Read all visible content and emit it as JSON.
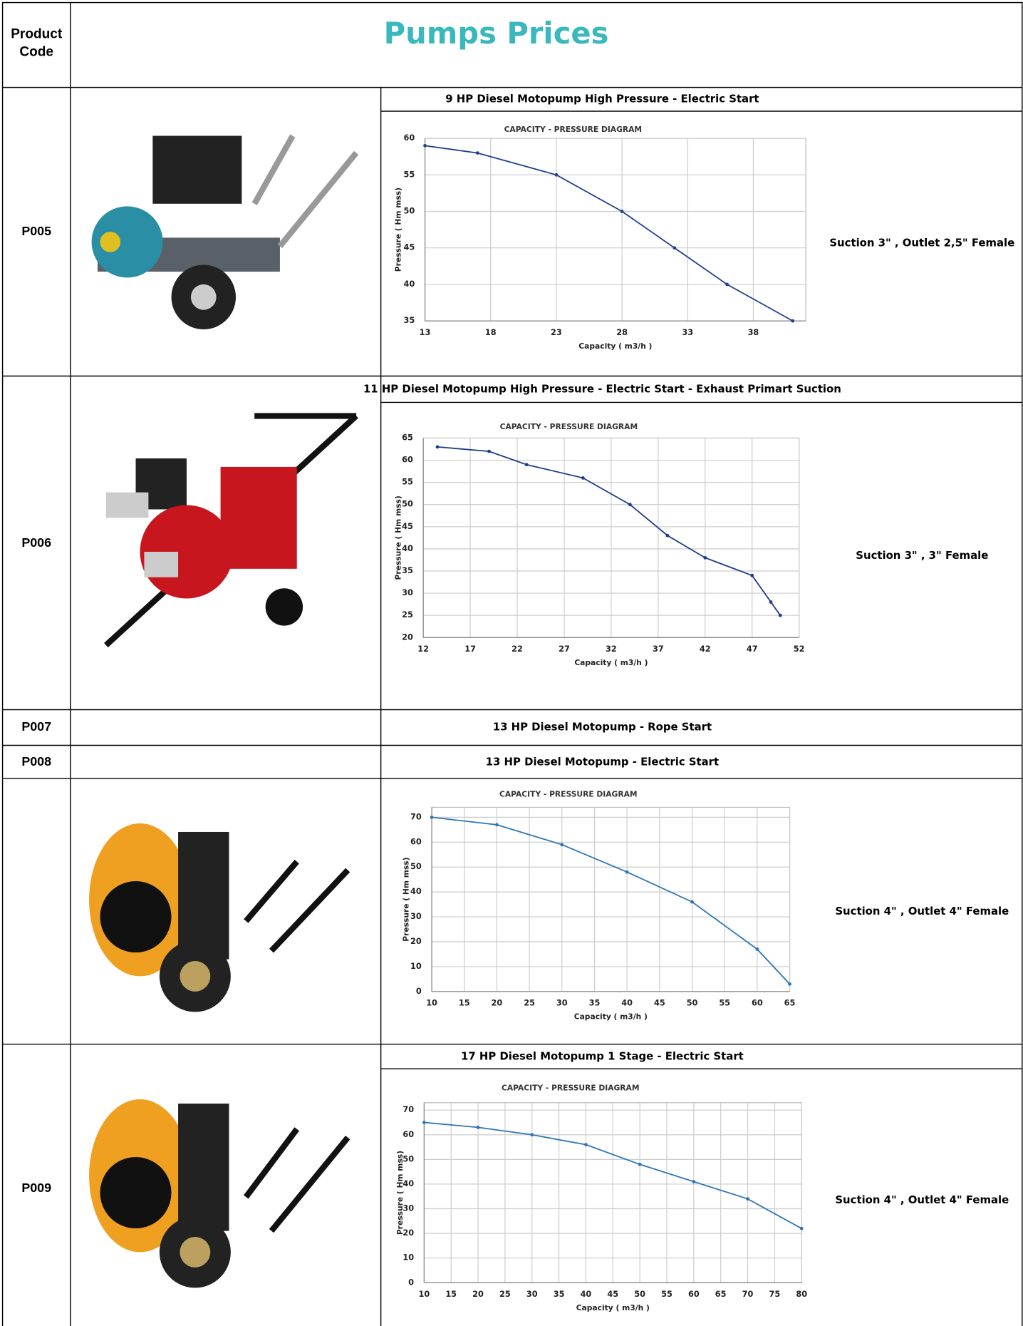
{
  "header": {
    "code_label": "Product Code",
    "title": "Pumps Prices"
  },
  "rows": [
    {
      "code": "P005",
      "heading": "9 HP Diesel  Motopump High Pressure - Electric Start",
      "spec": "Suction 3\" , Outlet 2,5\" Female"
    },
    {
      "code": "P006",
      "heading": "11 HP Diesel  Motopump High Pressure - Electric Start - Exhaust Primart Suction",
      "spec": "Suction 3\" , 3\" Female"
    },
    {
      "code": "P007",
      "heading": "13 HP Diesel  Motopump - Rope Start"
    },
    {
      "code": "P008",
      "heading": "13 HP Diesel Motopump - Electric Start"
    },
    {
      "spec": "Suction 4\" , Outlet 4\" Female"
    },
    {
      "code": "P009",
      "heading": "17 HP Diesel  Motopump 1 Stage - Electric Start",
      "spec": "Suction 4\" , Outlet 4\" Female"
    }
  ],
  "chart_data": [
    {
      "type": "line",
      "title": "CAPACITY - PRESSURE DIAGRAM",
      "x_label": "Capacity ( m3/h )",
      "y_label": "Pressure ( Hm mss)",
      "x": [
        13,
        17,
        23,
        28,
        32,
        36,
        41
      ],
      "values": [
        59,
        58,
        55,
        50,
        45,
        40,
        35
      ],
      "color": "#1f3f8f",
      "xlim": [
        13,
        42
      ],
      "ylim": [
        35,
        60
      ],
      "xticks": [
        13,
        18,
        23,
        28,
        33,
        38
      ],
      "yticks": [
        35,
        40,
        45,
        50,
        55,
        60
      ],
      "grid": true
    },
    {
      "type": "line",
      "title": "CAPACITY - PRESSURE DIAGRAM",
      "x_label": "Capacity ( m3/h )",
      "y_label": "Pressure ( Hm mss)",
      "x": [
        13.5,
        19,
        23,
        29,
        34,
        38,
        42,
        47,
        49,
        50
      ],
      "values": [
        63,
        62,
        59,
        56,
        50,
        43,
        38,
        34,
        28,
        25
      ],
      "color": "#1a3a8a",
      "xlim": [
        12,
        52
      ],
      "ylim": [
        20,
        65
      ],
      "xticks": [
        12,
        17,
        22,
        27,
        32,
        37,
        42,
        47,
        52
      ],
      "yticks": [
        20,
        25,
        30,
        35,
        40,
        45,
        50,
        55,
        60,
        65
      ],
      "grid": true
    },
    {
      "type": "line",
      "title": "CAPACITY - PRESSURE DIAGRAM",
      "x_label": "Capacity ( m3/h )",
      "y_label": "Pressure ( Hm mss)",
      "x": [
        10,
        20,
        30,
        40,
        50,
        60,
        65
      ],
      "values": [
        70,
        67,
        59,
        48,
        36,
        17,
        3
      ],
      "color": "#2e75b6",
      "xlim": [
        10,
        65
      ],
      "ylim": [
        0,
        74
      ],
      "xticks": [
        10,
        15,
        20,
        25,
        30,
        35,
        40,
        45,
        50,
        55,
        60,
        65
      ],
      "yticks": [
        0,
        10,
        20,
        30,
        40,
        50,
        60,
        70
      ],
      "grid": true
    },
    {
      "type": "line",
      "title": "CAPACITY - PRESSURE DIAGRAM",
      "x_label": "Capacity ( m3/h )",
      "y_label": "Pressure ( Hm mss)",
      "x": [
        10,
        20,
        30,
        40,
        50,
        60,
        70,
        80
      ],
      "values": [
        65,
        63,
        60,
        56,
        48,
        41,
        34,
        22
      ],
      "color": "#2e75b6",
      "xlim": [
        10,
        80
      ],
      "ylim": [
        0,
        73
      ],
      "xticks": [
        10,
        15,
        20,
        25,
        30,
        35,
        40,
        45,
        50,
        55,
        60,
        65,
        70,
        75,
        80
      ],
      "yticks": [
        0,
        10,
        20,
        30,
        40,
        50,
        60,
        70
      ],
      "grid": true
    }
  ]
}
